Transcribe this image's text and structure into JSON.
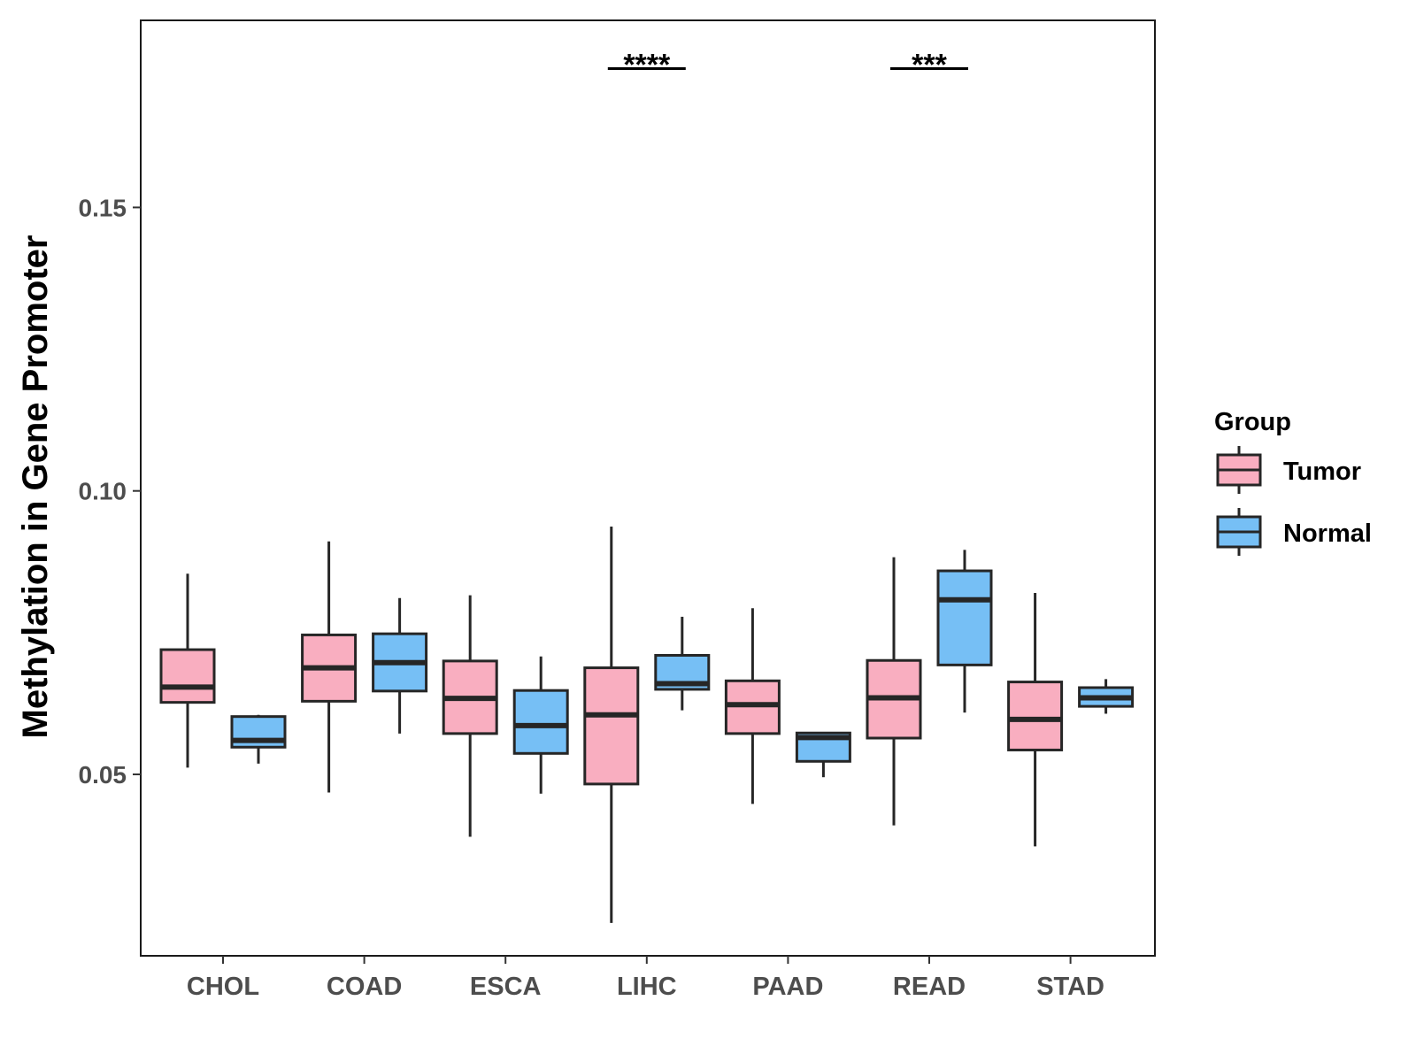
{
  "chart_data": {
    "type": "boxplot",
    "title": "",
    "xlabel": "",
    "ylabel": "Methylation in Gene Promoter",
    "ylim": [
      0.018,
      0.183
    ],
    "yticks": [
      0.05,
      0.1,
      0.15
    ],
    "ytick_labels": [
      "0.05",
      "0.10",
      "0.15"
    ],
    "categories": [
      "CHOL",
      "COAD",
      "ESCA",
      "LIHC",
      "PAAD",
      "READ",
      "STAD"
    ],
    "legend": {
      "title": "Group",
      "placement": "right",
      "entries": [
        "Tumor",
        "Normal"
      ]
    },
    "series": [
      {
        "name": "Tumor",
        "color": "#F9AEC0",
        "boxes": [
          {
            "low": 0.0512,
            "q1": 0.0627,
            "median": 0.0654,
            "q3": 0.072,
            "high": 0.0854
          },
          {
            "low": 0.0468,
            "q1": 0.0629,
            "median": 0.0688,
            "q3": 0.0746,
            "high": 0.0911
          },
          {
            "low": 0.039,
            "q1": 0.0572,
            "median": 0.0634,
            "q3": 0.07,
            "high": 0.0816
          },
          {
            "low": 0.0238,
            "q1": 0.0483,
            "median": 0.0605,
            "q3": 0.0688,
            "high": 0.0937
          },
          {
            "low": 0.0448,
            "q1": 0.0572,
            "median": 0.0623,
            "q3": 0.0665,
            "high": 0.0793
          },
          {
            "low": 0.041,
            "q1": 0.0564,
            "median": 0.0635,
            "q3": 0.0701,
            "high": 0.0883
          },
          {
            "low": 0.0373,
            "q1": 0.0543,
            "median": 0.0597,
            "q3": 0.0663,
            "high": 0.082
          }
        ]
      },
      {
        "name": "Normal",
        "color": "#76BFF5",
        "boxes": [
          {
            "low": 0.0519,
            "q1": 0.0548,
            "median": 0.056,
            "q3": 0.0602,
            "high": 0.0605
          },
          {
            "low": 0.0572,
            "q1": 0.0647,
            "median": 0.0697,
            "q3": 0.0748,
            "high": 0.0811
          },
          {
            "low": 0.0466,
            "q1": 0.0537,
            "median": 0.0586,
            "q3": 0.0648,
            "high": 0.0708
          },
          {
            "low": 0.0613,
            "q1": 0.065,
            "median": 0.066,
            "q3": 0.071,
            "high": 0.0778
          },
          {
            "low": 0.0495,
            "q1": 0.0523,
            "median": 0.0565,
            "q3": 0.0573,
            "high": 0.0573
          },
          {
            "low": 0.0609,
            "q1": 0.0693,
            "median": 0.0808,
            "q3": 0.0859,
            "high": 0.0896
          },
          {
            "low": 0.0607,
            "q1": 0.062,
            "median": 0.0635,
            "q3": 0.0653,
            "high": 0.0668
          }
        ]
      }
    ],
    "annotations": [
      {
        "category": "LIHC",
        "label": "****",
        "y": 0.1745
      },
      {
        "category": "READ",
        "label": "***",
        "y": 0.1745
      }
    ]
  }
}
